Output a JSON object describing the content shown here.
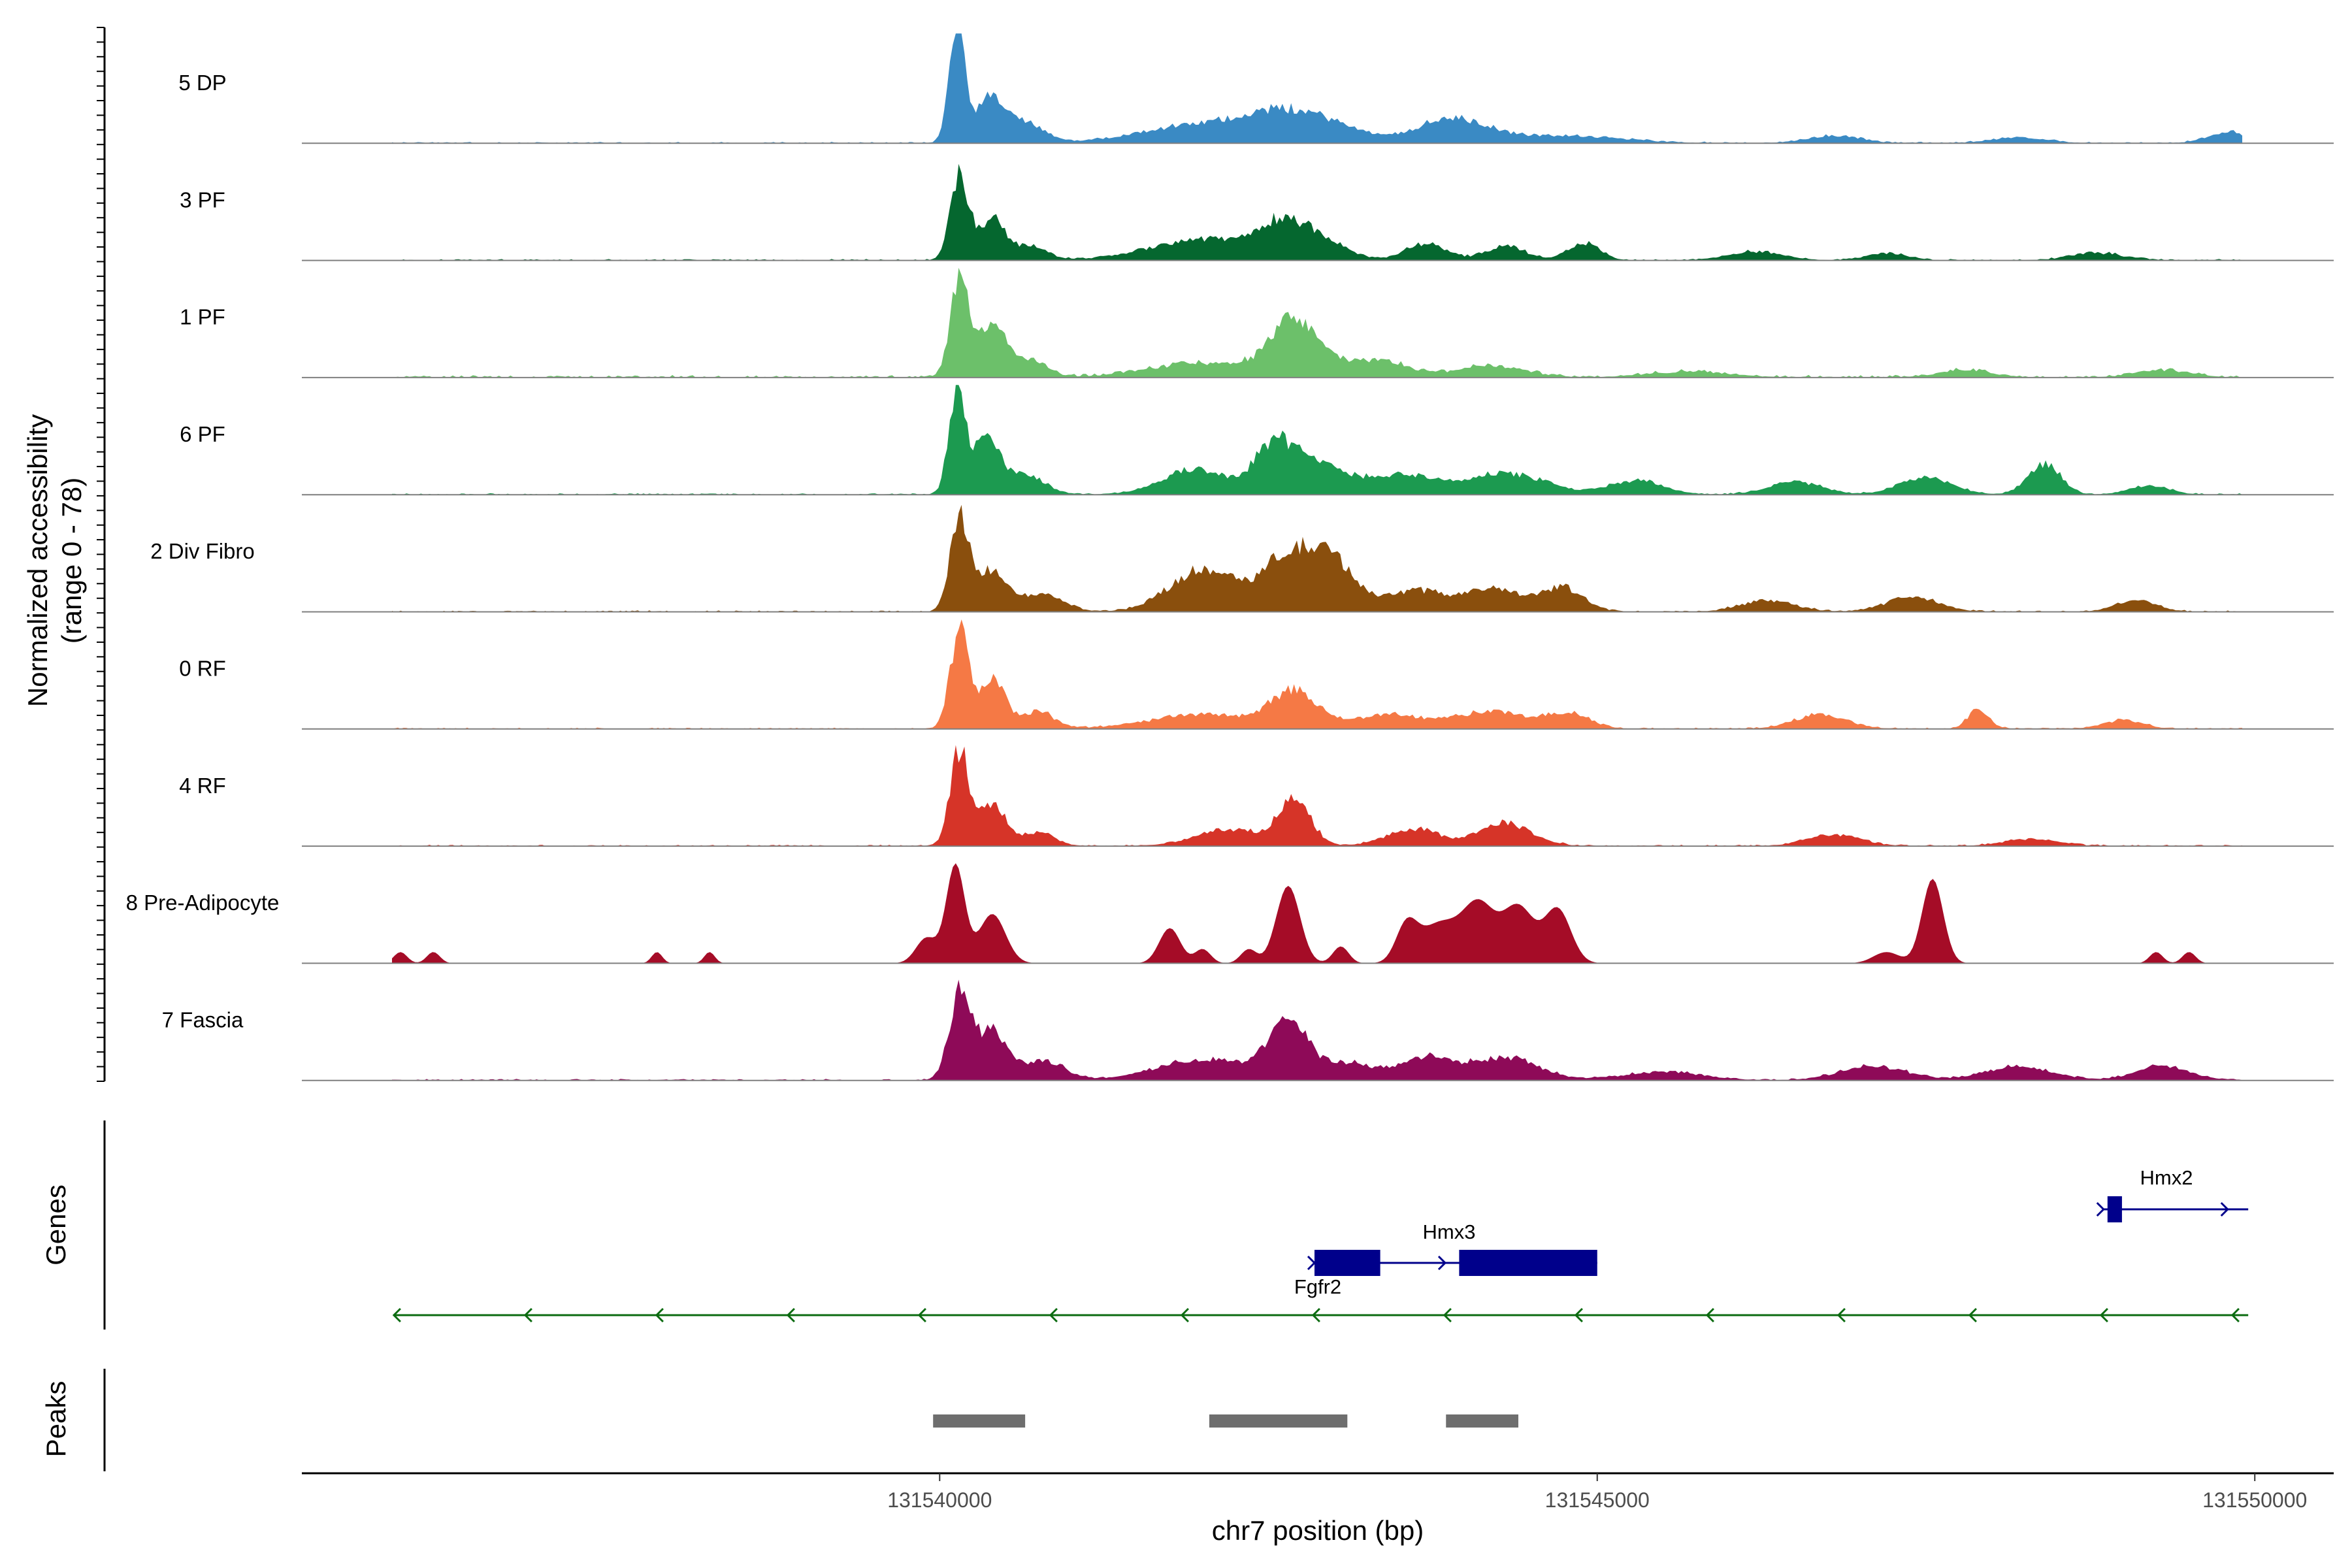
{
  "chart_data": {
    "type": "area",
    "title": "",
    "ylabel_line1": "Normalized accessibility",
    "ylabel_line2": "(range 0 - 78)",
    "y_range": [
      0,
      78
    ],
    "xlabel": "chr7 position (bp)",
    "x_range": [
      131535150,
      131550600
    ],
    "x_ticks": [
      {
        "value": 131540000,
        "label": "131540000"
      },
      {
        "value": 131545000,
        "label": "131545000"
      },
      {
        "value": 131550000,
        "label": "131550000"
      }
    ],
    "series": [
      {
        "name": "5 DP",
        "color": "#3a8ac4",
        "baseline": 0.3,
        "peaks": [
          [
            131540130,
            78,
            60
          ],
          [
            131540380,
            30,
            110
          ],
          [
            131540650,
            14,
            140
          ],
          [
            131541950,
            12,
            450
          ],
          [
            131542600,
            18,
            300
          ],
          [
            131543000,
            8,
            250
          ],
          [
            131543900,
            17,
            280
          ],
          [
            131544800,
            5,
            400
          ],
          [
            131546800,
            5,
            200
          ],
          [
            131548200,
            4,
            200
          ],
          [
            131549800,
            8,
            150
          ]
        ]
      },
      {
        "name": "3 PF",
        "color": "#05672f",
        "baseline": 0.3,
        "peaks": [
          [
            131540150,
            60,
            70
          ],
          [
            131540400,
            30,
            100
          ],
          [
            131540700,
            10,
            120
          ],
          [
            131542000,
            15,
            400
          ],
          [
            131542600,
            22,
            180
          ],
          [
            131542900,
            12,
            200
          ],
          [
            131543700,
            12,
            150
          ],
          [
            131544300,
            10,
            150
          ],
          [
            131544900,
            12,
            120
          ],
          [
            131546200,
            6,
            200
          ],
          [
            131547200,
            5,
            150
          ],
          [
            131548800,
            5,
            200
          ]
        ]
      },
      {
        "name": "1 PF",
        "color": "#6cc06a",
        "baseline": 0.5,
        "peaks": [
          [
            131540150,
            70,
            70
          ],
          [
            131540400,
            40,
            100
          ],
          [
            131540700,
            12,
            120
          ],
          [
            131542000,
            10,
            400
          ],
          [
            131542700,
            40,
            180
          ],
          [
            131543300,
            12,
            250
          ],
          [
            131544200,
            8,
            250
          ],
          [
            131545700,
            4,
            300
          ],
          [
            131547800,
            5,
            200
          ],
          [
            131549300,
            5,
            200
          ]
        ]
      },
      {
        "name": "6 PF",
        "color": "#1c9a50",
        "baseline": 0.3,
        "peaks": [
          [
            131540130,
            75,
            60
          ],
          [
            131540350,
            40,
            100
          ],
          [
            131540650,
            14,
            150
          ],
          [
            131541950,
            18,
            250
          ],
          [
            131542550,
            35,
            150
          ],
          [
            131542900,
            20,
            200
          ],
          [
            131543500,
            14,
            250
          ],
          [
            131544300,
            15,
            300
          ],
          [
            131545300,
            10,
            200
          ],
          [
            131546500,
            9,
            200
          ],
          [
            131547500,
            12,
            200
          ],
          [
            131548400,
            22,
            120
          ],
          [
            131549200,
            6,
            150
          ]
        ]
      },
      {
        "name": "2 Div Fibro",
        "color": "#8a4f0d",
        "baseline": 0.3,
        "peaks": [
          [
            131540150,
            65,
            70
          ],
          [
            131540400,
            30,
            120
          ],
          [
            131540800,
            12,
            150
          ],
          [
            131542000,
            30,
            250
          ],
          [
            131542650,
            38,
            200
          ],
          [
            131543000,
            32,
            180
          ],
          [
            131543600,
            14,
            200
          ],
          [
            131544200,
            16,
            250
          ],
          [
            131544750,
            16,
            150
          ],
          [
            131546300,
            8,
            200
          ],
          [
            131547400,
            10,
            200
          ],
          [
            131549100,
            8,
            150
          ]
        ]
      },
      {
        "name": "0 RF",
        "color": "#f57945",
        "baseline": 0.3,
        "peaks": [
          [
            131540150,
            70,
            70
          ],
          [
            131540400,
            35,
            100
          ],
          [
            131540750,
            12,
            120
          ],
          [
            131542000,
            10,
            400
          ],
          [
            131542700,
            25,
            180
          ],
          [
            131543400,
            10,
            250
          ],
          [
            131544200,
            12,
            300
          ],
          [
            131544800,
            10,
            150
          ],
          [
            131546700,
            10,
            200
          ],
          [
            131547900,
            14,
            80
          ],
          [
            131549000,
            6,
            150
          ]
        ]
      },
      {
        "name": "4 RF",
        "color": "#d63428",
        "baseline": 0.3,
        "peaks": [
          [
            131540150,
            68,
            70
          ],
          [
            131540400,
            30,
            100
          ],
          [
            131540750,
            10,
            120
          ],
          [
            131542200,
            12,
            250
          ],
          [
            131542700,
            32,
            120
          ],
          [
            131543600,
            12,
            200
          ],
          [
            131544300,
            16,
            200
          ],
          [
            131546800,
            8,
            200
          ],
          [
            131548300,
            5,
            200
          ]
        ]
      },
      {
        "name": "8 Pre-Adipocyte",
        "color": "#a50c27",
        "baseline": 0,
        "peaks": [
          [
            131535900,
            8,
            50
          ],
          [
            131536150,
            8,
            50
          ],
          [
            131537850,
            8,
            40
          ],
          [
            131538250,
            8,
            40
          ],
          [
            131539900,
            18,
            80
          ],
          [
            131540120,
            70,
            70
          ],
          [
            131540400,
            35,
            100
          ],
          [
            131541750,
            25,
            80
          ],
          [
            131542000,
            10,
            60
          ],
          [
            131542350,
            10,
            60
          ],
          [
            131542650,
            55,
            90
          ],
          [
            131543050,
            12,
            60
          ],
          [
            131543550,
            25,
            80
          ],
          [
            131543800,
            28,
            150
          ],
          [
            131544100,
            40,
            120
          ],
          [
            131544400,
            40,
            120
          ],
          [
            131544700,
            38,
            100
          ],
          [
            131547200,
            8,
            100
          ],
          [
            131547550,
            60,
            80
          ],
          [
            131549250,
            8,
            50
          ],
          [
            131549500,
            8,
            50
          ]
        ]
      },
      {
        "name": "7 Fascia",
        "color": "#8e0a58",
        "baseline": 0.3,
        "peaks": [
          [
            131540150,
            60,
            80
          ],
          [
            131540400,
            35,
            120
          ],
          [
            131540800,
            14,
            150
          ],
          [
            131542000,
            15,
            350
          ],
          [
            131542650,
            38,
            150
          ],
          [
            131543100,
            12,
            200
          ],
          [
            131543700,
            16,
            200
          ],
          [
            131544300,
            16,
            250
          ],
          [
            131545500,
            6,
            300
          ],
          [
            131547100,
            10,
            250
          ],
          [
            131548200,
            10,
            250
          ],
          [
            131549300,
            10,
            200
          ]
        ]
      }
    ],
    "genes": [
      {
        "name": "Fgfr2",
        "strand": "-",
        "start": 131535850,
        "end": 131549950,
        "exons": [],
        "color": "#0b6b10"
      },
      {
        "name": "Hmx3",
        "strand": "+",
        "start": 131542850,
        "end": 131545000,
        "exons": [
          [
            131542850,
            131543350
          ],
          [
            131543950,
            131545000
          ]
        ],
        "color": "#00008b"
      },
      {
        "name": "Hmx2",
        "strand": "+",
        "start": 131548850,
        "end": 131549950,
        "exons": [
          [
            131548880,
            131548990
          ]
        ],
        "color": "#00008b"
      }
    ],
    "genes_label": "Genes",
    "peaks_label": "Peaks",
    "peak_regions": [
      [
        131539950,
        131540650
      ],
      [
        131542050,
        131543100
      ],
      [
        131543850,
        131544400
      ]
    ]
  }
}
